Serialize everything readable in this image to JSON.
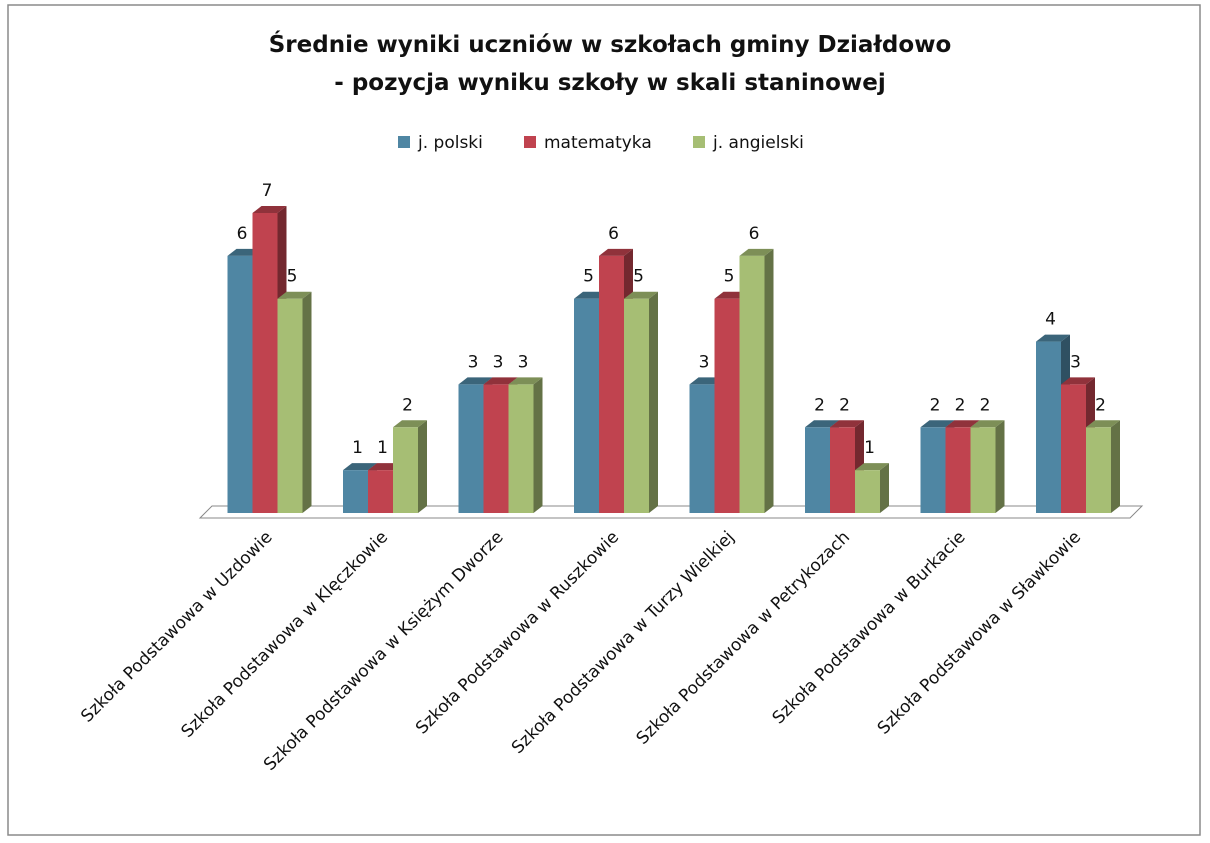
{
  "chart_data": {
    "type": "bar3d",
    "title": [
      "Średnie wyniki uczniów w szkołach gminy Działdowo",
      "- pozycja wyniku szkoły  w skali staninowej"
    ],
    "categories": [
      "Szkoła Podstawowa w Uzdowie",
      "Szkoła Podstawowa w Klęczkowie",
      "Szkoła Podstawowa w Księżym Dworze",
      "Szkoła Podstawowa w Ruszkowie",
      "Szkoła Podstawowa w Turzy Wielkiej",
      "Szkoła Podstawowa w Petrykozach",
      "Szkoła Podstawowa w Burkacie",
      "Szkoła Podstawowa w Sławkowie"
    ],
    "series": [
      {
        "name": "j. polski",
        "color": "#4f86a3",
        "values": [
          6,
          1,
          3,
          5,
          3,
          2,
          2,
          4
        ]
      },
      {
        "name": "matematyka",
        "color": "#c0434f",
        "values": [
          7,
          1,
          3,
          6,
          5,
          2,
          2,
          3
        ]
      },
      {
        "name": "j. angielski",
        "color": "#a6be74",
        "values": [
          5,
          2,
          3,
          5,
          6,
          1,
          2,
          2
        ]
      }
    ],
    "legend": "top"
  }
}
